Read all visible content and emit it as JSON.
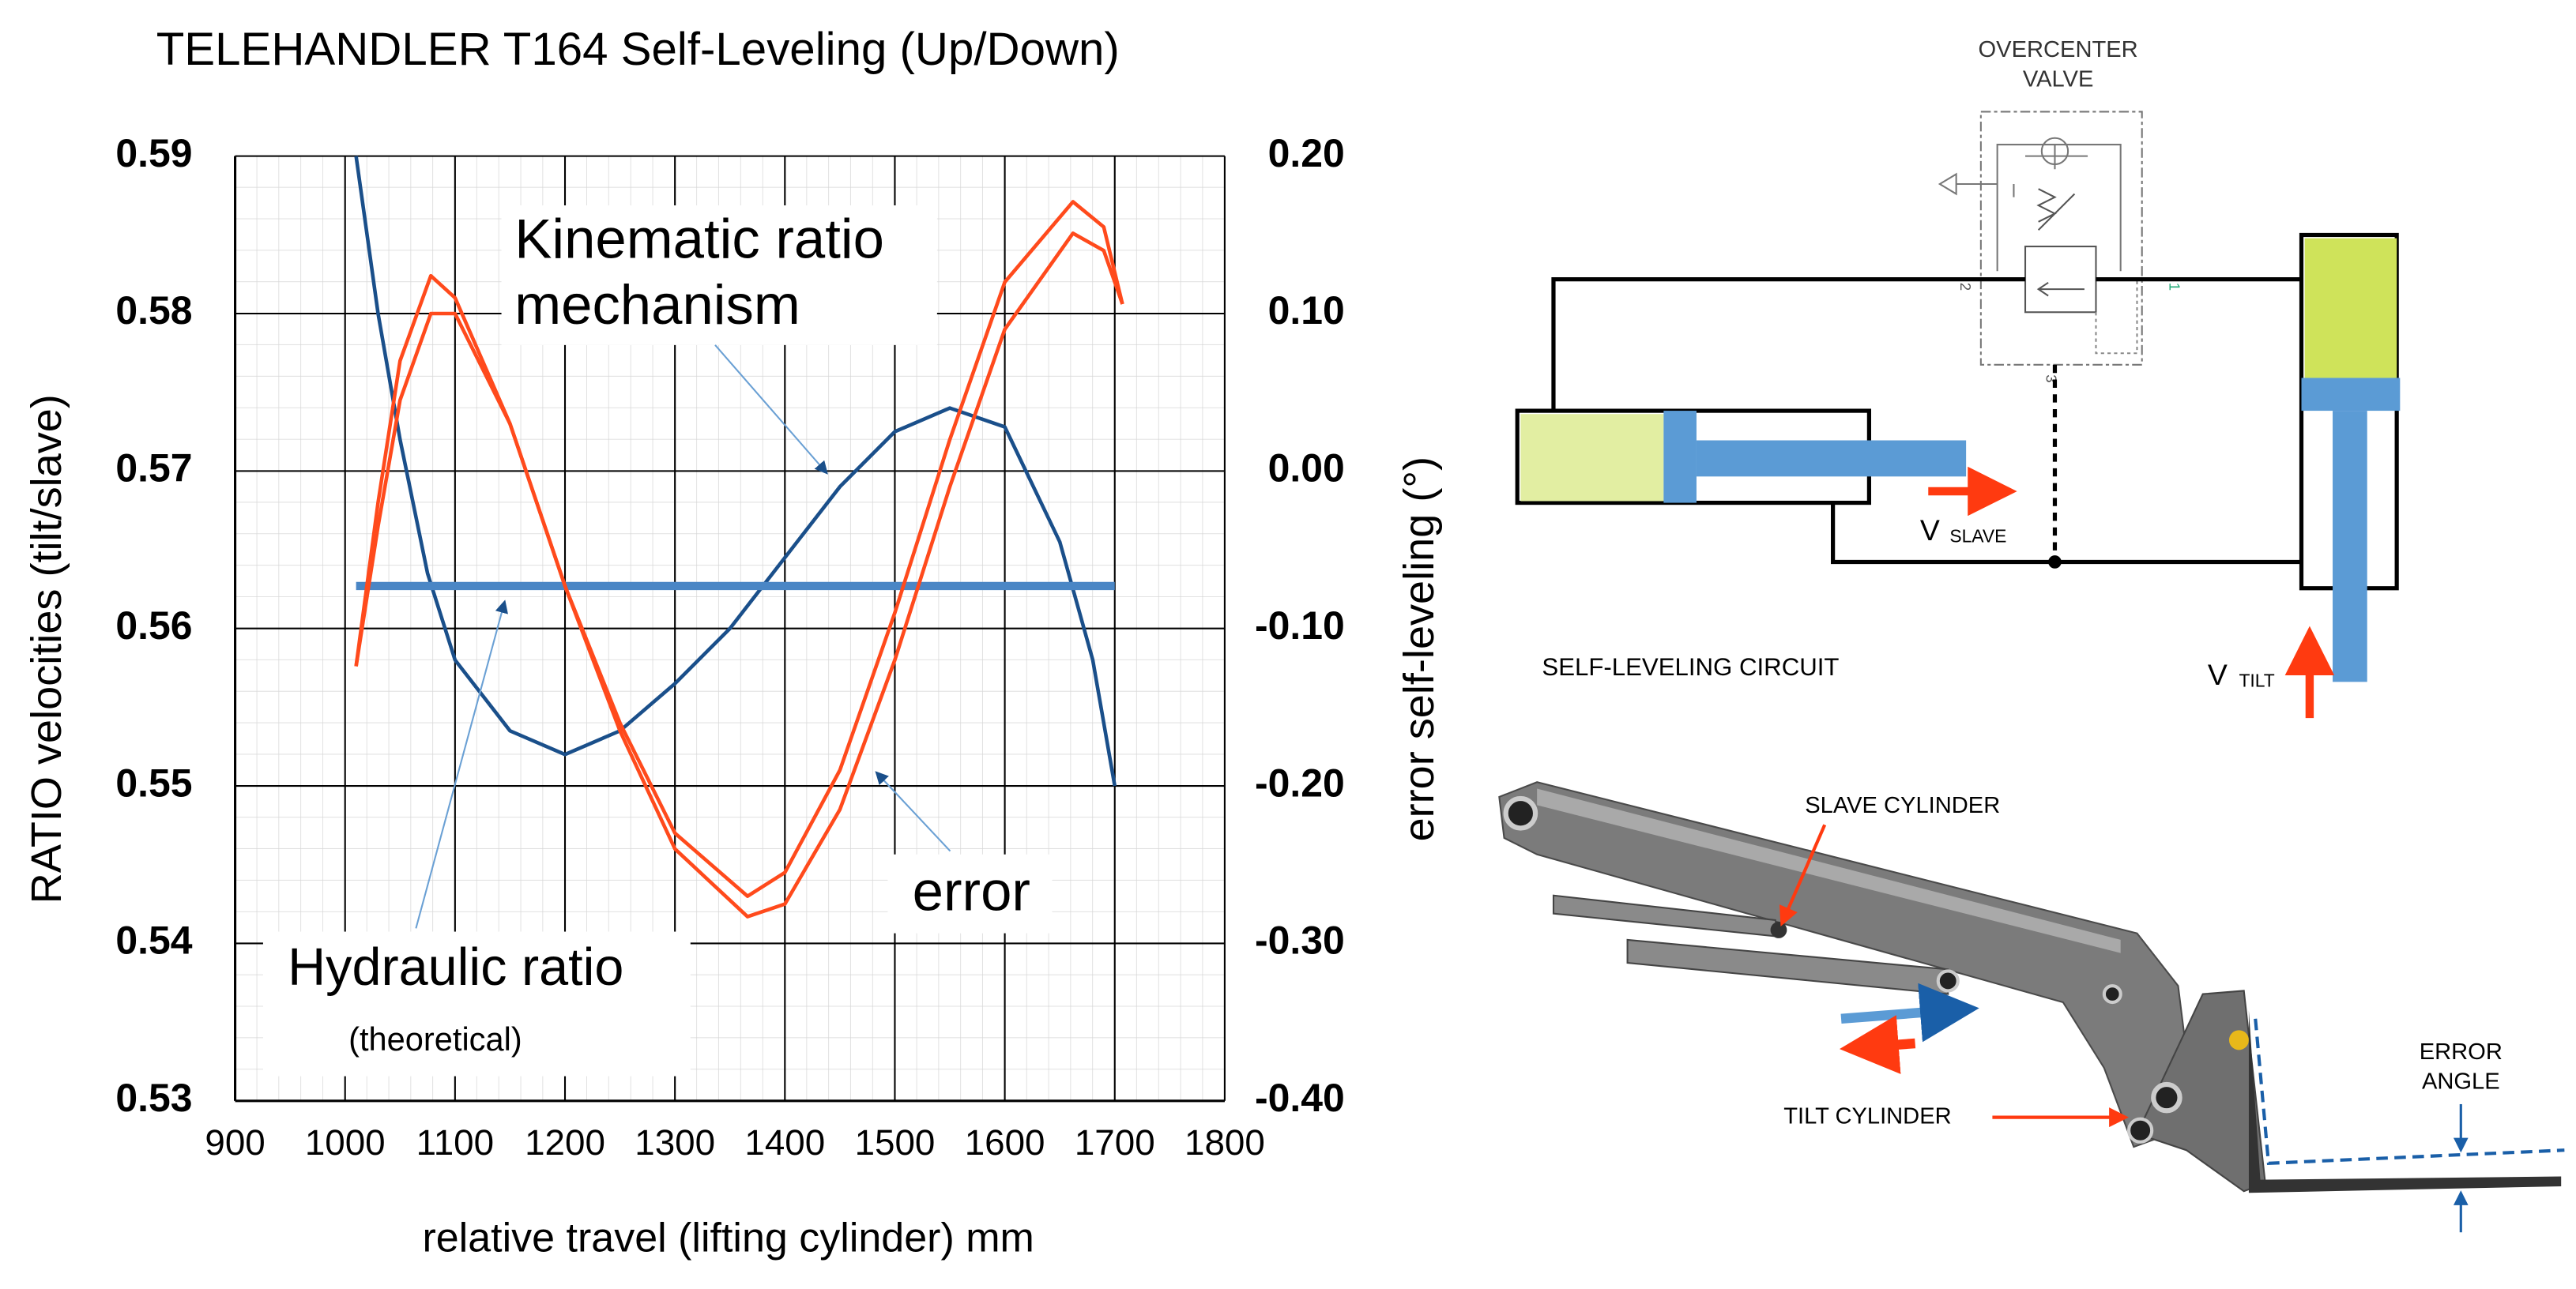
{
  "chart_data": {
    "type": "line",
    "title": "TELEHANDLER T164  Self-Leveling (Up/Down)",
    "x_label": "relative travel (lifting cylinder)  mm",
    "y_label": "RATIO velocities (tilt/slave)",
    "y2_label": "error self-leveling (°)",
    "xlim": [
      900,
      1800
    ],
    "xticks": [
      900,
      1000,
      1100,
      1200,
      1300,
      1400,
      1500,
      1600,
      1700,
      1800
    ],
    "ylim": [
      0.53,
      0.59
    ],
    "yticks": [
      0.53,
      0.54,
      0.55,
      0.56,
      0.57,
      0.58,
      0.59
    ],
    "y2lim": [
      -0.4,
      0.2
    ],
    "y2ticks": [
      {
        "value": -0.4,
        "label": "-0.40"
      },
      {
        "value": -0.3,
        "label": "-0.30"
      },
      {
        "value": -0.2,
        "label": "-0.20"
      },
      {
        "value": -0.1,
        "label": "-0.10"
      },
      {
        "value": 0,
        "label": "0.00"
      },
      {
        "value": 0.1,
        "label": "0.10"
      },
      {
        "value": 0.2,
        "label": "0.20"
      }
    ],
    "grid": true,
    "series": [
      {
        "color": "#1a4f8a",
        "x": [
          1010,
          1030,
          1050,
          1075,
          1100,
          1150,
          1200,
          1250,
          1300,
          1350,
          1400,
          1450,
          1500,
          1550,
          1600,
          1650,
          1680,
          1700
        ],
        "values": [
          0.59,
          0.58,
          0.572,
          0.5635,
          0.558,
          0.5535,
          0.552,
          0.5535,
          0.5565,
          0.56,
          0.5645,
          0.569,
          0.5725,
          0.574,
          0.5728,
          0.5655,
          0.558,
          0.55
        ]
      },
      {
        "color": "#4a86c5",
        "x": [
          1010,
          1700
        ],
        "values": [
          0.5627,
          0.5627
        ]
      },
      {
        "color": "#ff4a1c",
        "axis": "y2",
        "x": [
          1010,
          1030,
          1050,
          1078,
          1100,
          1150,
          1200,
          1250,
          1300,
          1366,
          1400,
          1450,
          1500,
          1550,
          1600,
          1662,
          1690,
          1707
        ],
        "values": [
          -0.124,
          -0.02,
          0.07,
          0.124,
          0.11,
          0.03,
          -0.073,
          -0.16,
          -0.23,
          -0.27,
          -0.255,
          -0.19,
          -0.09,
          0.02,
          0.12,
          0.171,
          0.155,
          0.106
        ]
      },
      {
        "color": "#ff4a1c",
        "axis": "y2",
        "x": [
          1010,
          1030,
          1050,
          1078,
          1100,
          1150,
          1200,
          1250,
          1300,
          1366,
          1400,
          1450,
          1500,
          1550,
          1600,
          1662,
          1690,
          1707
        ],
        "values": [
          -0.124,
          -0.035,
          0.045,
          0.1,
          0.1,
          0.03,
          -0.073,
          -0.165,
          -0.24,
          -0.283,
          -0.275,
          -0.215,
          -0.12,
          -0.01,
          0.09,
          0.151,
          0.14,
          0.106
        ]
      }
    ],
    "annotations": [
      "Kinematic ratio",
      "mechanism",
      "Hydraulic ratio",
      "(theoretical)",
      "error"
    ]
  },
  "diagram": {
    "valve_title": [
      "OVERCENTER",
      "VALVE"
    ],
    "ports": [
      "2",
      "1",
      "3"
    ],
    "circuit_label": "SELF-LEVELING CIRCUIT",
    "v_slave": [
      "V",
      "SLAVE"
    ],
    "v_tilt": [
      "V",
      "TILT"
    ],
    "slave_cylinder": "SLAVE CYLINDER",
    "tilt_cylinder": "TILT CYLINDER",
    "error_angle": [
      "ERROR",
      "ANGLE"
    ]
  }
}
